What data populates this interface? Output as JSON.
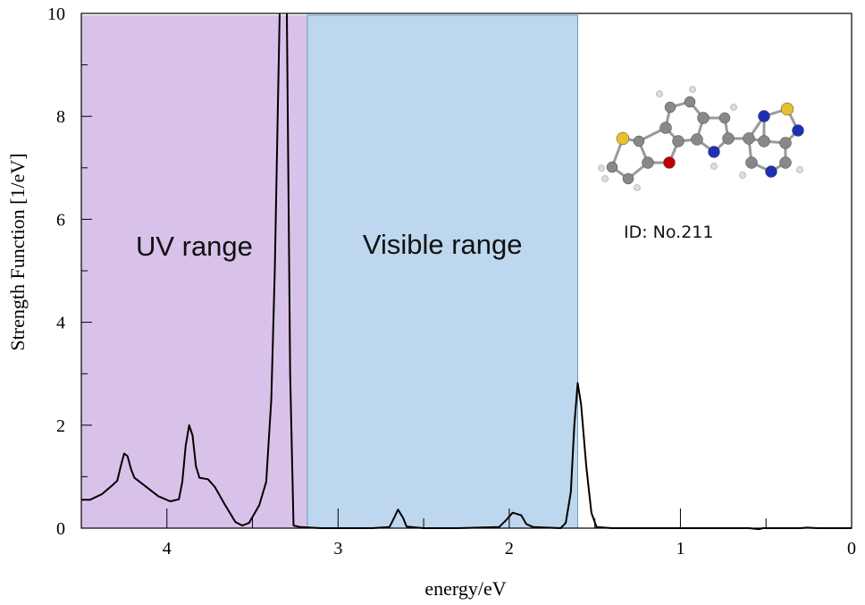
{
  "chart_data": {
    "type": "line",
    "xlabel": "energy/eV",
    "ylabel": "Strength Function [1/eV]",
    "xlim": [
      4.5,
      0
    ],
    "ylim": [
      0,
      10
    ],
    "x_reversed": true,
    "x_ticks": [
      4,
      3,
      2,
      1,
      0
    ],
    "y_ticks": [
      0,
      2,
      4,
      6,
      8,
      10
    ],
    "grid": false,
    "bands": [
      {
        "label": "UV range",
        "from": 4.5,
        "to": 3.18,
        "color": "#d9c2ea"
      },
      {
        "label": "Visible range",
        "from": 3.18,
        "to": 1.6,
        "color": "#bdd7ee"
      }
    ],
    "annotation": "ID: No.211",
    "series": [
      {
        "color": "#000000",
        "points": [
          [
            4.5,
            0.55
          ],
          [
            4.45,
            0.55
          ],
          [
            4.38,
            0.66
          ],
          [
            4.32,
            0.83
          ],
          [
            4.29,
            0.92
          ],
          [
            4.27,
            1.2
          ],
          [
            4.25,
            1.45
          ],
          [
            4.23,
            1.4
          ],
          [
            4.21,
            1.15
          ],
          [
            4.19,
            0.98
          ],
          [
            4.12,
            0.8
          ],
          [
            4.05,
            0.62
          ],
          [
            3.98,
            0.52
          ],
          [
            3.93,
            0.56
          ],
          [
            3.91,
            0.9
          ],
          [
            3.89,
            1.6
          ],
          [
            3.87,
            2.0
          ],
          [
            3.85,
            1.8
          ],
          [
            3.83,
            1.2
          ],
          [
            3.81,
            0.98
          ],
          [
            3.76,
            0.95
          ],
          [
            3.72,
            0.8
          ],
          [
            3.66,
            0.45
          ],
          [
            3.6,
            0.12
          ],
          [
            3.56,
            0.05
          ],
          [
            3.52,
            0.1
          ],
          [
            3.46,
            0.45
          ],
          [
            3.42,
            0.9
          ],
          [
            3.39,
            2.5
          ],
          [
            3.37,
            5.0
          ],
          [
            3.35,
            8.5
          ],
          [
            3.34,
            10.2
          ],
          [
            3.3,
            10.2
          ],
          [
            3.28,
            3.0
          ],
          [
            3.26,
            0.05
          ],
          [
            3.22,
            0.02
          ],
          [
            3.1,
            0.0
          ],
          [
            2.8,
            0.0
          ],
          [
            2.7,
            0.02
          ],
          [
            2.68,
            0.15
          ],
          [
            2.65,
            0.36
          ],
          [
            2.62,
            0.2
          ],
          [
            2.6,
            0.03
          ],
          [
            2.5,
            0.0
          ],
          [
            2.3,
            0.0
          ],
          [
            2.06,
            0.02
          ],
          [
            2.02,
            0.15
          ],
          [
            1.98,
            0.3
          ],
          [
            1.93,
            0.25
          ],
          [
            1.9,
            0.08
          ],
          [
            1.86,
            0.02
          ],
          [
            1.7,
            0.0
          ],
          [
            1.67,
            0.1
          ],
          [
            1.64,
            0.7
          ],
          [
            1.62,
            2.0
          ],
          [
            1.6,
            2.82
          ],
          [
            1.58,
            2.4
          ],
          [
            1.55,
            1.2
          ],
          [
            1.52,
            0.3
          ],
          [
            1.49,
            0.02
          ],
          [
            1.4,
            0.0
          ],
          [
            0.6,
            0.0
          ],
          [
            0.54,
            -0.02
          ],
          [
            0.52,
            0.0
          ],
          [
            0.3,
            0.0
          ],
          [
            0.26,
            0.01
          ],
          [
            0.2,
            0.0
          ],
          [
            0.0,
            0.0
          ]
        ]
      }
    ]
  }
}
